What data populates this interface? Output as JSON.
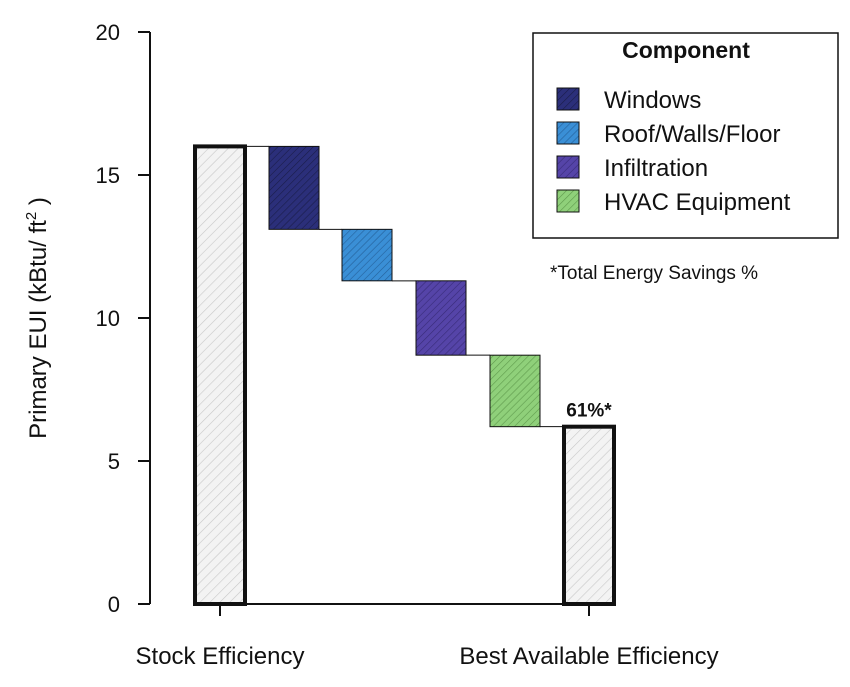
{
  "chart_data": {
    "type": "bar",
    "subtype": "waterfall",
    "ylabel": "Primary EUI (kBtu/ ft",
    "ylabel_superscript": "2",
    "ylabel_suffix": ")",
    "ylim": [
      0,
      20
    ],
    "yticks": [
      "0",
      "5",
      "10",
      "15",
      "20"
    ],
    "grid": false,
    "categories": [
      "Stock Efficiency",
      "Best Available Efficiency"
    ],
    "totals": [
      {
        "category": "Stock Efficiency",
        "value": 16.0
      },
      {
        "category": "Best Available Efficiency",
        "value": 6.2
      }
    ],
    "steps": [
      {
        "name": "Windows",
        "from": 16.0,
        "to": 13.1,
        "color": "#2b2f7a"
      },
      {
        "name": "Roof/Walls/Floor",
        "from": 13.1,
        "to": 11.3,
        "color": "#3a8fd6"
      },
      {
        "name": "Infiltration",
        "from": 11.3,
        "to": 8.7,
        "color": "#5544a8"
      },
      {
        "name": "HVAC Equipment",
        "from": 8.7,
        "to": 6.2,
        "color": "#8fd07a"
      }
    ],
    "legend": {
      "title": "Component",
      "placement": "top-right",
      "items": [
        {
          "label": "Windows",
          "color": "#2b2f7a"
        },
        {
          "label": "Roof/Walls/Floor",
          "color": "#3a8fd6"
        },
        {
          "label": "Infiltration",
          "color": "#5544a8"
        },
        {
          "label": "HVAC Equipment",
          "color": "#8fd07a"
        }
      ]
    },
    "note": "*Total Energy Savings %",
    "savings_label": "61%*"
  }
}
